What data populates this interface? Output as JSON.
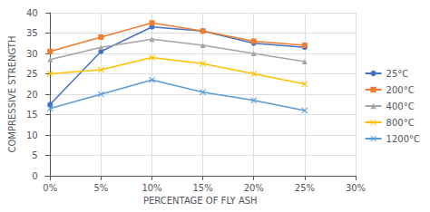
{
  "chart_data": {
    "type": "line",
    "xlabel": "PERCENTAGE OF FLY ASH",
    "ylabel": "COMPRESSIVE STRENGTH",
    "x": [
      0,
      5,
      10,
      15,
      20,
      25
    ],
    "series": [
      {
        "name": "25°C",
        "color": "#4472C4",
        "marker": "circle",
        "values": [
          17.5,
          30.5,
          36.5,
          35.5,
          32.5,
          31.5
        ]
      },
      {
        "name": "200°C",
        "color": "#ED7D31",
        "marker": "square",
        "values": [
          30.5,
          34,
          37.5,
          35.5,
          33,
          32
        ]
      },
      {
        "name": "400°C",
        "color": "#A5A5A5",
        "marker": "triangle",
        "values": [
          28.5,
          31.5,
          33.5,
          32,
          30,
          28
        ]
      },
      {
        "name": "800°C",
        "color": "#FFC000",
        "marker": "x",
        "values": [
          25,
          26,
          29,
          27.5,
          25,
          22.5
        ]
      },
      {
        "name": "1200°C",
        "color": "#5B9BD5",
        "marker": "x",
        "values": [
          16.5,
          20,
          23.5,
          20.5,
          18.5,
          16
        ]
      }
    ],
    "xlim": [
      -0.5,
      30
    ],
    "xticks": [
      {
        "value": 0,
        "label": "0%"
      },
      {
        "value": 5,
        "label": "5%"
      },
      {
        "value": 10,
        "label": "10%"
      },
      {
        "value": 15,
        "label": "15%"
      },
      {
        "value": 20,
        "label": "20%"
      },
      {
        "value": 25,
        "label": "25%"
      },
      {
        "value": 30,
        "label": "30%"
      }
    ],
    "ylim": [
      0,
      40
    ],
    "yticks": [
      0,
      5,
      10,
      15,
      20,
      25,
      30,
      35,
      40
    ],
    "grid": true,
    "legend": "right"
  }
}
